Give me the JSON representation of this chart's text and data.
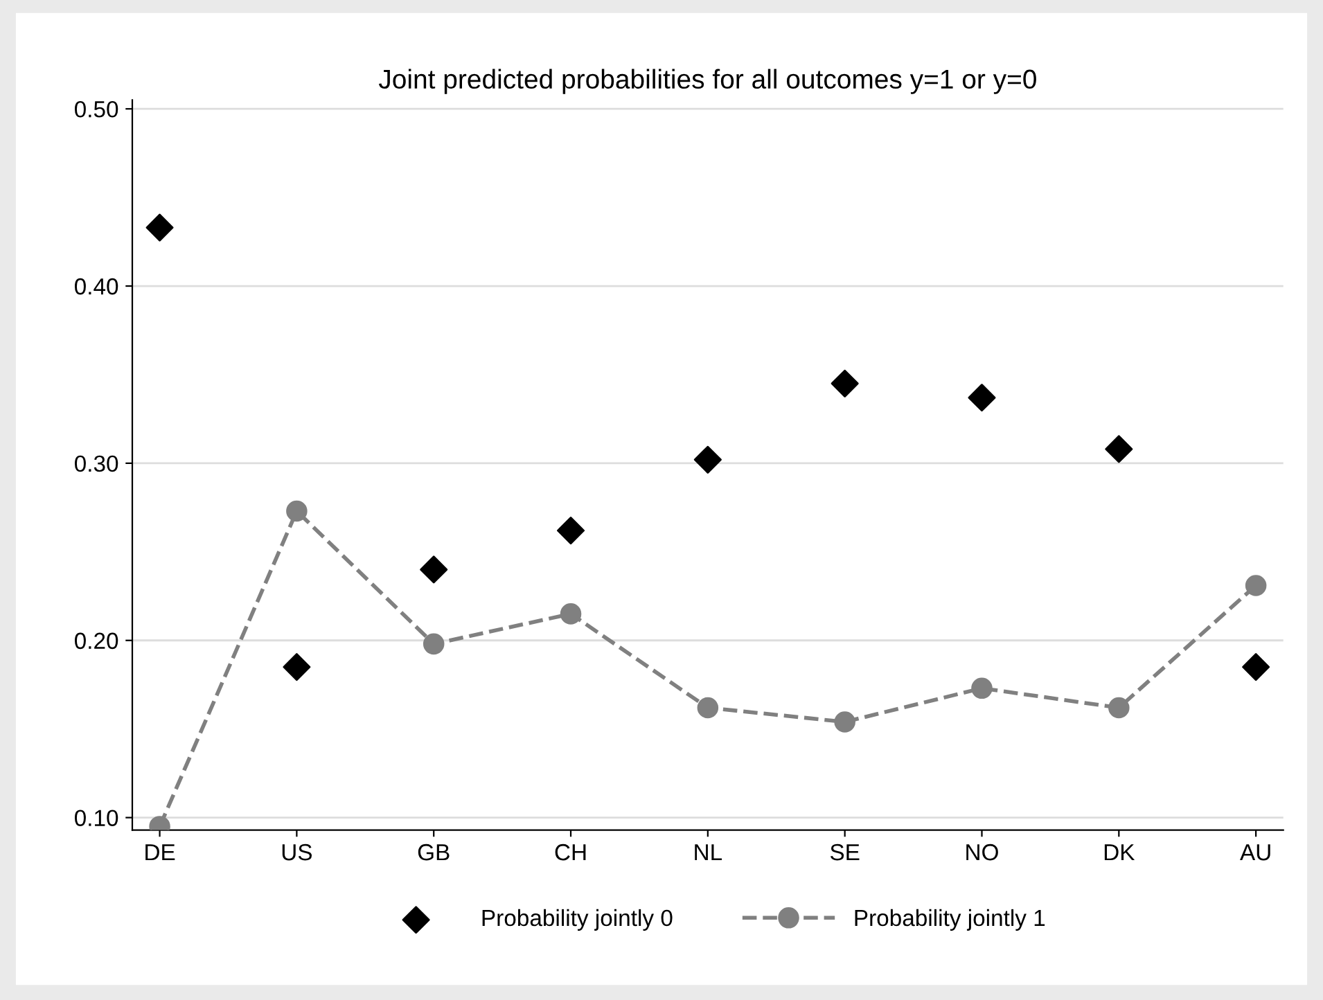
{
  "chart_data": {
    "type": "scatter",
    "title": "Joint predicted probabilities for all outcomes y=1 or y=0",
    "categories": [
      "DE",
      "US",
      "GB",
      "CH",
      "NL",
      "SE",
      "NO",
      "DK",
      "AU"
    ],
    "series": [
      {
        "name": "Probability jointly 0",
        "color": "#000000",
        "marker": "diamond",
        "values": [
          0.433,
          0.185,
          0.24,
          0.262,
          0.302,
          0.345,
          0.337,
          0.308,
          0.185
        ]
      },
      {
        "name": "Probability jointly 1",
        "type": "line",
        "color": "#808080",
        "marker": "circle",
        "line_style": "dashed",
        "values": [
          0.095,
          0.273,
          0.198,
          0.215,
          0.162,
          0.154,
          0.173,
          0.162,
          0.231
        ]
      }
    ],
    "ylim": [
      0.093,
      0.505
    ],
    "yticks": [
      {
        "value": 0.1,
        "label": "0.10"
      },
      {
        "value": 0.2,
        "label": "0.20"
      },
      {
        "value": 0.3,
        "label": "0.30"
      },
      {
        "value": 0.4,
        "label": "0.40"
      },
      {
        "value": 0.5,
        "label": "0.50"
      }
    ],
    "grid": "y",
    "legend": "bottom"
  }
}
